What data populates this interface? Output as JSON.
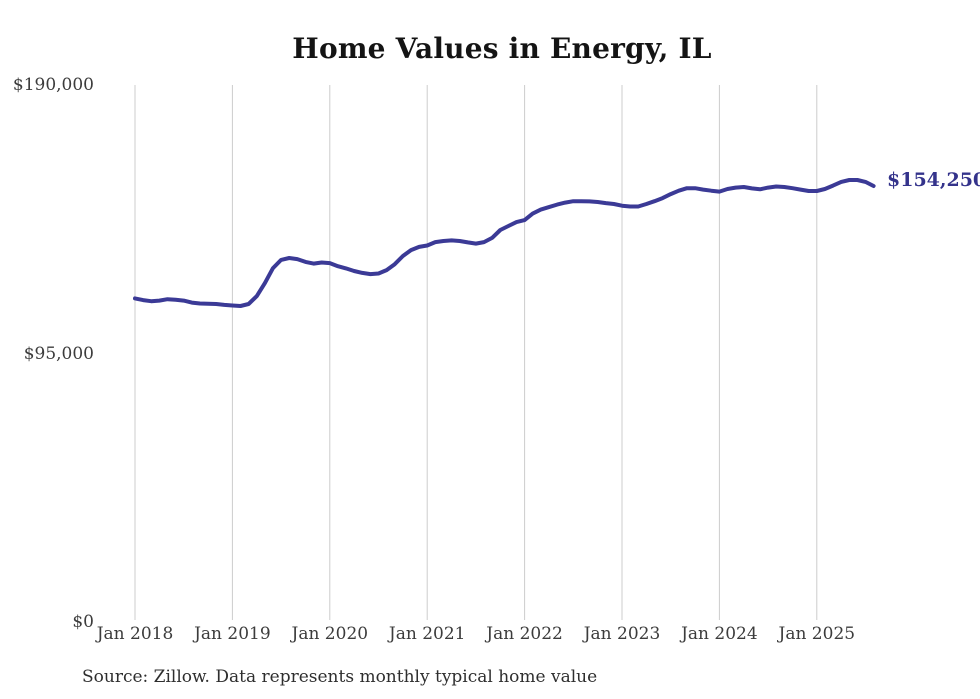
{
  "page": {
    "background": "#ffffff"
  },
  "chart_data": {
    "type": "line",
    "title": "Home Values in Energy, IL",
    "source_note": "Source: Zillow. Data represents monthly typical home value",
    "end_label": "$154,250",
    "latest_value": 154250,
    "line_color": "#3b3a96",
    "end_label_color": "#34338b",
    "gridline_color": "#cccccc",
    "axis_text_color": "#3c3c3c",
    "grid": "vertical-year-lines",
    "legend": "none",
    "x_interval": "monthly",
    "x_start_month": "2018-01",
    "x_end_month": "2025-08",
    "x_tick_labels": [
      "Jan 2018",
      "Jan 2019",
      "Jan 2020",
      "Jan 2021",
      "Jan 2022",
      "Jan 2023",
      "Jan 2024",
      "Jan 2025"
    ],
    "y_ticks": [
      {
        "label": "$0",
        "value": 0
      },
      {
        "label": "$95,000",
        "value": 95000
      },
      {
        "label": "$190,000",
        "value": 190000
      }
    ],
    "ylim": [
      0,
      190000
    ],
    "xlabel": "",
    "ylabel": "",
    "series": [
      {
        "name": "Monthly typical home value",
        "values": [
          114500,
          113900,
          113500,
          113700,
          114200,
          114000,
          113700,
          113000,
          112700,
          112600,
          112500,
          112200,
          112000,
          111800,
          112500,
          115300,
          119900,
          125200,
          128100,
          128800,
          128400,
          127400,
          126800,
          127200,
          127000,
          125900,
          125100,
          124200,
          123500,
          123100,
          123300,
          124500,
          126600,
          129500,
          131600,
          132700,
          133200,
          134400,
          134800,
          135000,
          134800,
          134300,
          133900,
          134400,
          135900,
          138700,
          140100,
          141500,
          142200,
          144500,
          145900,
          146800,
          147700,
          148400,
          148900,
          148900,
          148800,
          148600,
          148200,
          147900,
          147300,
          147000,
          147000,
          147900,
          148900,
          150000,
          151400,
          152600,
          153500,
          153500,
          153000,
          152600,
          152300,
          153200,
          153700,
          153900,
          153400,
          153100,
          153700,
          154100,
          153900,
          153500,
          153000,
          152500,
          152500,
          153200,
          154400,
          155700,
          156400,
          156400,
          155700,
          154250
        ]
      }
    ]
  }
}
